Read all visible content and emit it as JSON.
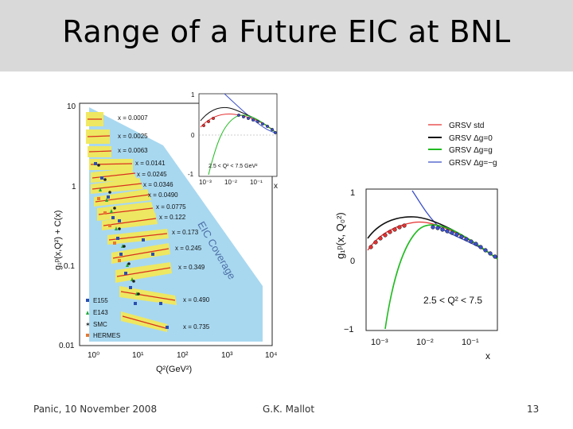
{
  "slide": {
    "title": "Range of a Future EIC at BNL",
    "footer_left": "Panic, 10 November 2008",
    "footer_center": "G.K. Mallot",
    "footer_right": "13"
  },
  "left_plot": {
    "y_ticks": [
      "10",
      "1",
      "0.1",
      "0.01"
    ],
    "x_ticks": [
      "10⁰",
      "10¹",
      "10²",
      "10³",
      "10⁴"
    ],
    "x_axis_label": "Q²(GeV²)",
    "y_axis_label": "g₁ᵖ(x,Q²) + C(x)",
    "x_values": [
      "x = 0.0007",
      "x = 0.0025",
      "x = 0.0063",
      "x = 0.0141",
      "x = 0.0245",
      "x = 0.0346",
      "x = 0.0490",
      "x = 0.0775",
      "x = 0.122",
      "x = 0.173",
      "x = 0.245",
      "x = 0.349",
      "x = 0.490",
      "x = 0.735"
    ],
    "coverage_label": "EIC Coverage",
    "legend": [
      "E155",
      "E143",
      "SMC",
      "HERMES"
    ],
    "colors": {
      "coverage": "#a8d8f0",
      "band": "#f2e85a"
    }
  },
  "inset_plot": {
    "y_ticks": [
      "1",
      "0",
      "-1"
    ],
    "x_ticks": [
      "10⁻³",
      "10⁻²",
      "10⁻¹"
    ],
    "x_axis_label": "x",
    "range_text": "2.5 < Q² < 7.5 GeV²"
  },
  "legend": {
    "items": [
      {
        "label": "GRSV std",
        "color": "#e53030"
      },
      {
        "label": "GRSV Δg=0",
        "color": "#111111"
      },
      {
        "label": "GRSV Δg=g",
        "color": "#22bb22"
      },
      {
        "label": "GRSV Δg=−g",
        "color": "#3a4fc8"
      }
    ]
  },
  "right_plot": {
    "y_ticks": [
      "1",
      "0",
      "−1"
    ],
    "x_ticks": [
      "10⁻³",
      "10⁻²",
      "10⁻¹"
    ],
    "x_axis_label": "x",
    "y_axis_label": "g₁ᵖ(x, Q₀²)",
    "range_text": "2.5 < Q² < 7.5"
  }
}
